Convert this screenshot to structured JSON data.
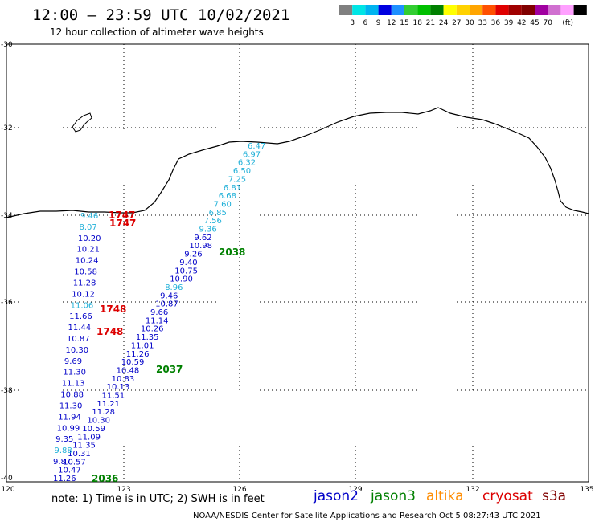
{
  "header": {
    "title": "12:00 – 23:59 UTC 10/02/2021",
    "subtitle": "12 hour collection of altimeter wave heights"
  },
  "colorbar": {
    "swatches": [
      "#808080",
      "#00e5e5",
      "#00b4f0",
      "#0000e0",
      "#1e90ff",
      "#32cd32",
      "#00c000",
      "#008000",
      "#ffff00",
      "#ffd200",
      "#ffa500",
      "#ff5000",
      "#e00000",
      "#a00000",
      "#800000",
      "#a000a0",
      "#d070d0",
      "#ffa0ff",
      "#000000"
    ],
    "ticks": [
      "3",
      "6",
      "9",
      "12",
      "15",
      "18",
      "21",
      "24",
      "27",
      "30",
      "33",
      "36",
      "39",
      "42",
      "45",
      "70"
    ],
    "unit": "(ft)"
  },
  "map": {
    "lat_labels": [
      "-30",
      "-32",
      "-34",
      "-36",
      "-38",
      "-40"
    ],
    "lon_labels": [
      "120",
      "123",
      "126",
      "129",
      "132",
      "135"
    ]
  },
  "colors": {
    "jason2": "#0000c8",
    "jason3": "#008000",
    "altika": "#ff8c00",
    "cryosat": "#dc0000",
    "s3a": "#800000",
    "s3a_light": "#20b0d8"
  },
  "tracks": {
    "diagonal_values": [
      "6.47",
      "6.97",
      "6.32",
      "6.50",
      "7.25",
      "6.81",
      "6.68",
      "7.60",
      "6.85",
      "7.56",
      "9.36",
      "9.62",
      "10.98",
      "9.26",
      "9.40",
      "10.75",
      "10.90",
      "8.96",
      "9.46",
      "10.87",
      "9.66",
      "11.14",
      "10.26",
      "11.35",
      "11.01",
      "11.26",
      "10.59",
      "10.48",
      "10.83",
      "10.13",
      "11.51",
      "11.21",
      "11.28",
      "10.30",
      "10.59",
      "11.09",
      "11.35",
      "10.31",
      "10.57",
      "10.47",
      "11.26"
    ],
    "left_values": [
      "9.46",
      "8.07",
      "10.20",
      "10.21",
      "10.24",
      "10.58",
      "11.28",
      "10.12",
      "11.06",
      "11.66",
      "11.44",
      "10.87",
      "10.30",
      "9.69",
      "11.30",
      "11.13",
      "10.88",
      "11.30",
      "11.94",
      "10.99",
      "9.35",
      "9.88",
      "9.87"
    ],
    "time_labels": [
      "1747",
      "1747",
      "1748",
      "1748",
      "2038",
      "2037",
      "2036"
    ]
  },
  "legend": {
    "note": "note: 1) Time is in UTC; 2) SWH is in feet",
    "jason2": "jason2",
    "jason3": "jason3",
    "altika": "altika",
    "cryosat": "cryosat",
    "s3a": "s3a"
  },
  "footer": "NOAA/NESDIS Center for Satellite Applications and Research   Oct  5 08:27:43 UTC 2021"
}
